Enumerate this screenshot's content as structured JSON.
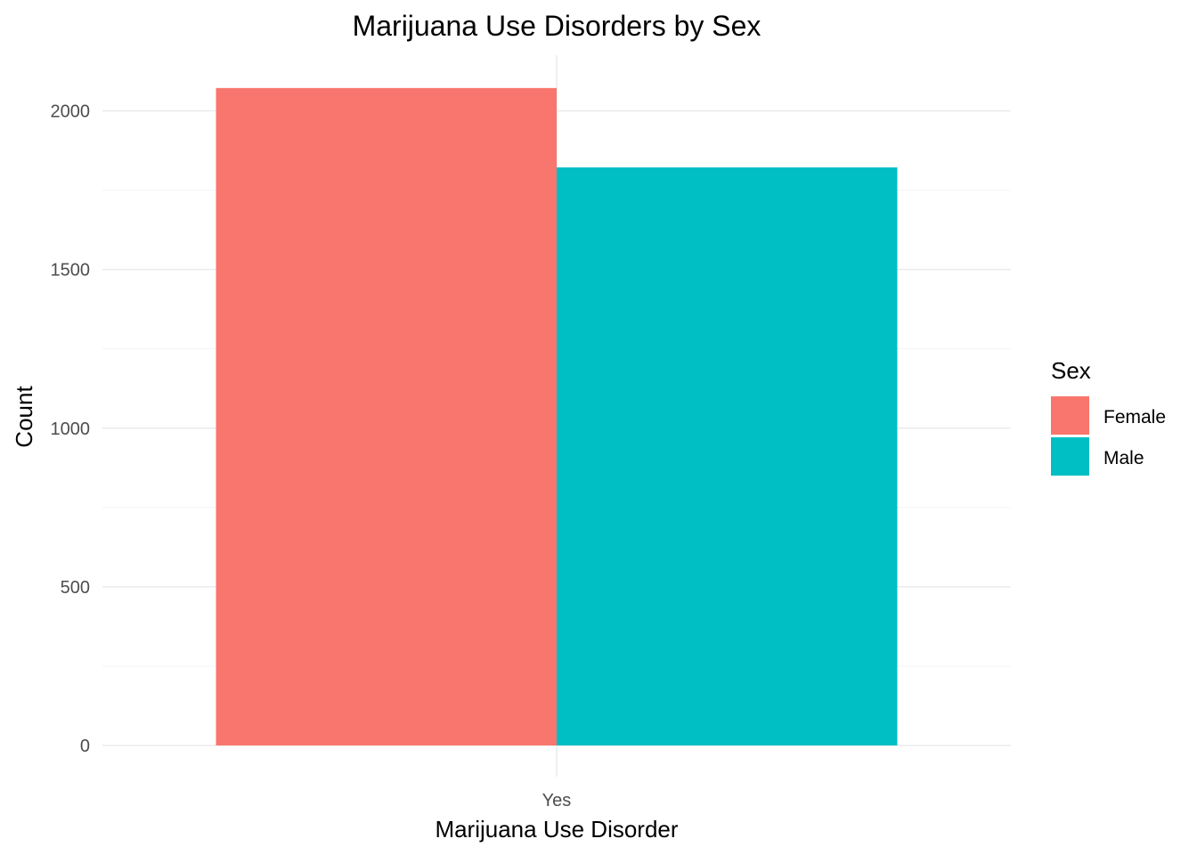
{
  "chart_data": {
    "type": "bar",
    "title": "Marijuana Use Disorders by Sex",
    "xlabel": "Marijuana Use Disorder",
    "ylabel": "Count",
    "categories": [
      "Yes"
    ],
    "series": [
      {
        "name": "Female",
        "values": [
          2072
        ],
        "color": "#F8766D"
      },
      {
        "name": "Male",
        "values": [
          1822
        ],
        "color": "#00BFC4"
      }
    ],
    "ylim": [
      0,
      2175
    ],
    "yticks": [
      0,
      500,
      1000,
      1500,
      2000
    ],
    "grid": true,
    "legend": {
      "title": "Sex",
      "position": "right"
    }
  }
}
